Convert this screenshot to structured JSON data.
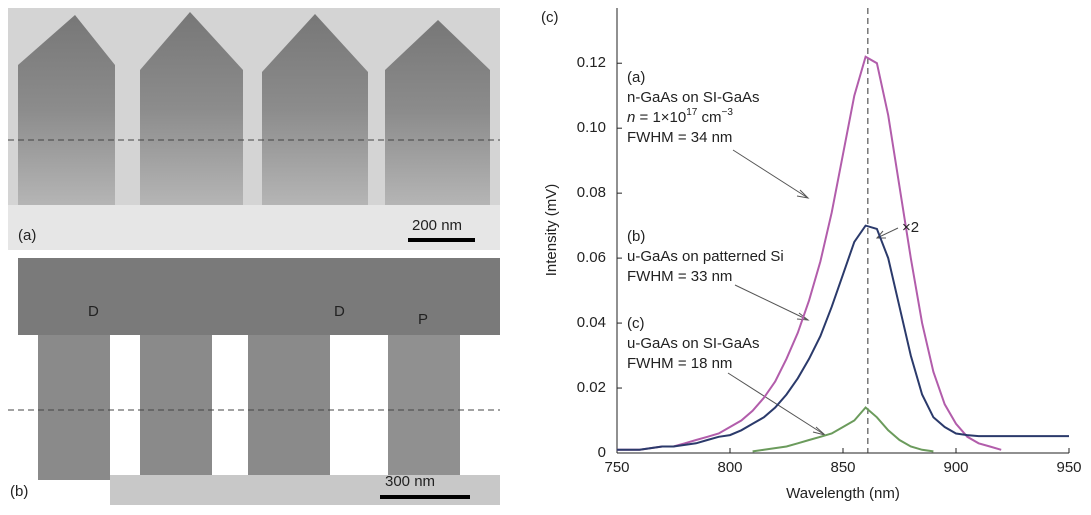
{
  "micrographs": [
    {
      "label": "(a)",
      "scale_bar": "200 nm"
    },
    {
      "label": "(b)",
      "scale_bar": "300 nm",
      "markers": [
        "D",
        "D",
        "P"
      ]
    }
  ],
  "chart_data": {
    "type": "line",
    "panel_label": "(c)",
    "xlabel": "Wavelength (nm)",
    "ylabel": "Intensity (mV)",
    "xlim": [
      750,
      950
    ],
    "xticks": [
      750,
      800,
      850,
      900,
      950
    ],
    "ylim": [
      0,
      0.137
    ],
    "yticks": [
      0,
      0.02,
      0.04,
      0.06,
      0.08,
      {
        "value": 0.1,
        "label": "0.10"
      },
      0.12
    ],
    "reference_line_x": 861,
    "x": [
      750,
      755,
      760,
      765,
      770,
      775,
      780,
      785,
      790,
      795,
      800,
      805,
      810,
      815,
      820,
      825,
      830,
      835,
      840,
      845,
      850,
      855,
      860,
      865,
      870,
      875,
      880,
      885,
      890,
      895,
      900,
      905,
      910,
      915,
      920,
      925,
      930,
      935,
      940,
      945,
      950
    ],
    "series": [
      {
        "name": "(a)",
        "color": "#b25dab",
        "values": [
          0.001,
          0.001,
          0.001,
          0.0015,
          0.002,
          0.002,
          0.003,
          0.004,
          0.005,
          0.006,
          0.008,
          0.01,
          0.013,
          0.017,
          0.022,
          0.029,
          0.037,
          0.047,
          0.059,
          0.074,
          0.092,
          0.11,
          0.122,
          0.12,
          0.104,
          0.082,
          0.06,
          0.04,
          0.025,
          0.015,
          0.009,
          0.005,
          0.003,
          0.002,
          0.001,
          null,
          null,
          null,
          null,
          null,
          null
        ]
      },
      {
        "name": "(b)",
        "color": "#2b3a6b",
        "values": [
          0.001,
          0.001,
          0.001,
          0.0015,
          0.002,
          0.002,
          0.0025,
          0.003,
          0.004,
          0.005,
          0.0055,
          0.007,
          0.009,
          0.011,
          0.014,
          0.018,
          0.023,
          0.029,
          0.036,
          0.045,
          0.055,
          0.065,
          0.07,
          0.069,
          0.06,
          0.045,
          0.03,
          0.018,
          0.011,
          0.008,
          0.006,
          0.0055,
          0.0052,
          0.0052,
          0.0052,
          0.0052,
          0.0052,
          0.0052,
          0.0052,
          0.0052,
          0.0052
        ]
      },
      {
        "name": "(c)",
        "color": "#6b9b5c",
        "values": [
          null,
          null,
          null,
          null,
          null,
          null,
          null,
          null,
          null,
          null,
          null,
          null,
          0.0005,
          0.001,
          0.0015,
          0.002,
          0.003,
          0.004,
          0.005,
          0.006,
          0.008,
          0.01,
          0.014,
          0.011,
          0.007,
          0.004,
          0.002,
          0.001,
          0.0005,
          null,
          null,
          null,
          null,
          null,
          null,
          null,
          null,
          null,
          null,
          null,
          null
        ]
      }
    ],
    "annotations": [
      {
        "lines": [
          "(a)",
          "n-GaAs on SI-GaAs",
          [
            "n",
            " = 1×10",
            "17",
            " cm",
            "−3"
          ],
          "FWHM = 34 nm"
        ]
      },
      {
        "lines": [
          "(b)",
          "u-GaAs on patterned Si",
          "FWHM = 33 nm"
        ]
      },
      {
        "lines": [
          "(c)",
          "u-GaAs on SI-GaAs",
          "FWHM = 18 nm"
        ]
      },
      {
        "lines": [
          "×2"
        ]
      }
    ]
  }
}
